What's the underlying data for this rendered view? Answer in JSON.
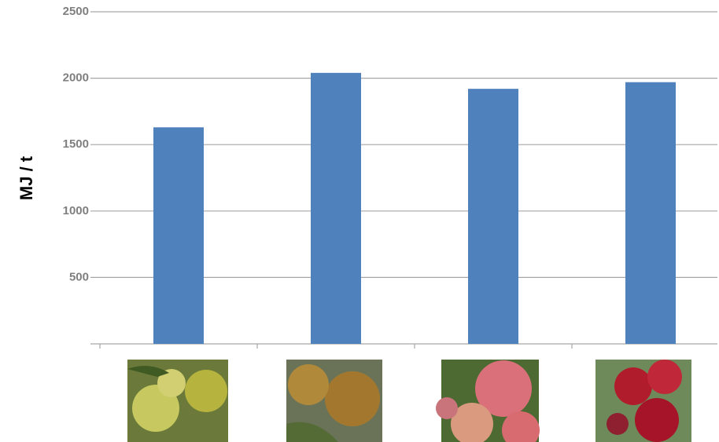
{
  "chart_data": {
    "type": "bar",
    "y_label": "MJ / t",
    "categories": [
      null,
      null,
      null,
      null
    ],
    "values": [
      1630,
      2040,
      1920,
      1970
    ],
    "color": "#4f81bd",
    "ylim": [
      0,
      2500
    ],
    "yticks": [
      500,
      1000,
      1500,
      2000,
      2500
    ],
    "grid": true
  }
}
